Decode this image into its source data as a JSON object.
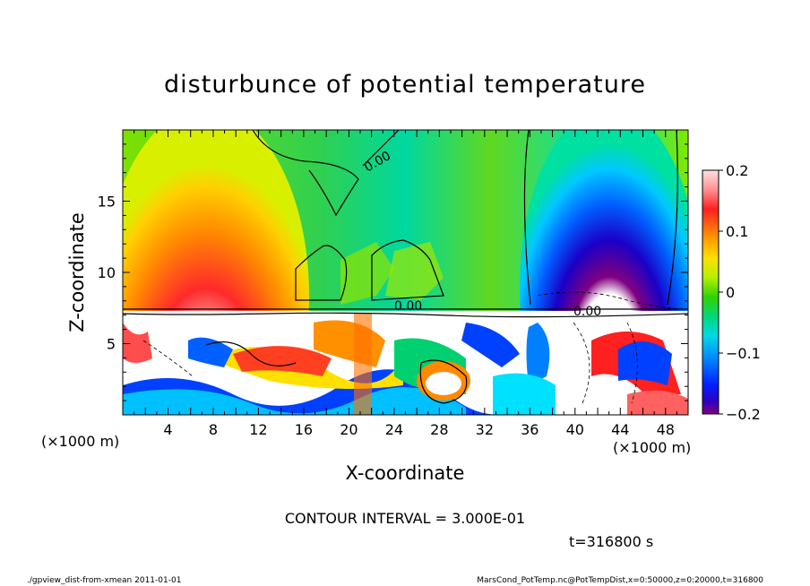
{
  "chart_data": {
    "type": "heatmap",
    "title": "disturbunce of potential temperature",
    "xlabel": "X-coordinate",
    "ylabel": "Z-coordinate",
    "x_unit": "(×1000 m)",
    "y_unit": "(×1000 m)",
    "xlim": [
      0,
      50
    ],
    "ylim": [
      0,
      20
    ],
    "x_ticks": [
      "4",
      "8",
      "12",
      "16",
      "20",
      "24",
      "28",
      "32",
      "36",
      "40",
      "44",
      "48"
    ],
    "y_ticks": [
      "5",
      "10",
      "15"
    ],
    "colorbar": {
      "range": [
        -0.2,
        0.2
      ],
      "tick_labels": [
        "0.2",
        "0.1",
        "0",
        "−0.1",
        "−0.2"
      ]
    },
    "contour_labels": [
      "0.00",
      "0.00",
      "0.00"
    ],
    "contour_interval": "CONTOUR INTERVAL = 3.000E-01",
    "time_label": "t=316800 s",
    "footer_left": "./gpview_dist-from-xmean  2011-01-01",
    "footer_right": "MarsCond_PotTemp.nc@PotTempDist,x=0:50000,z=0:20000,t=316800",
    "colors": [
      "#800080",
      "#1a00c8",
      "#0028ff",
      "#0080ff",
      "#00c8ff",
      "#00e6b4",
      "#00d26e",
      "#32d200",
      "#96e600",
      "#c8f000",
      "#ffff00",
      "#ffc800",
      "#ff9600",
      "#ff5a00",
      "#ff1e1e",
      "#ff6e6e",
      "#ffb4b4",
      "#ffffff"
    ]
  }
}
